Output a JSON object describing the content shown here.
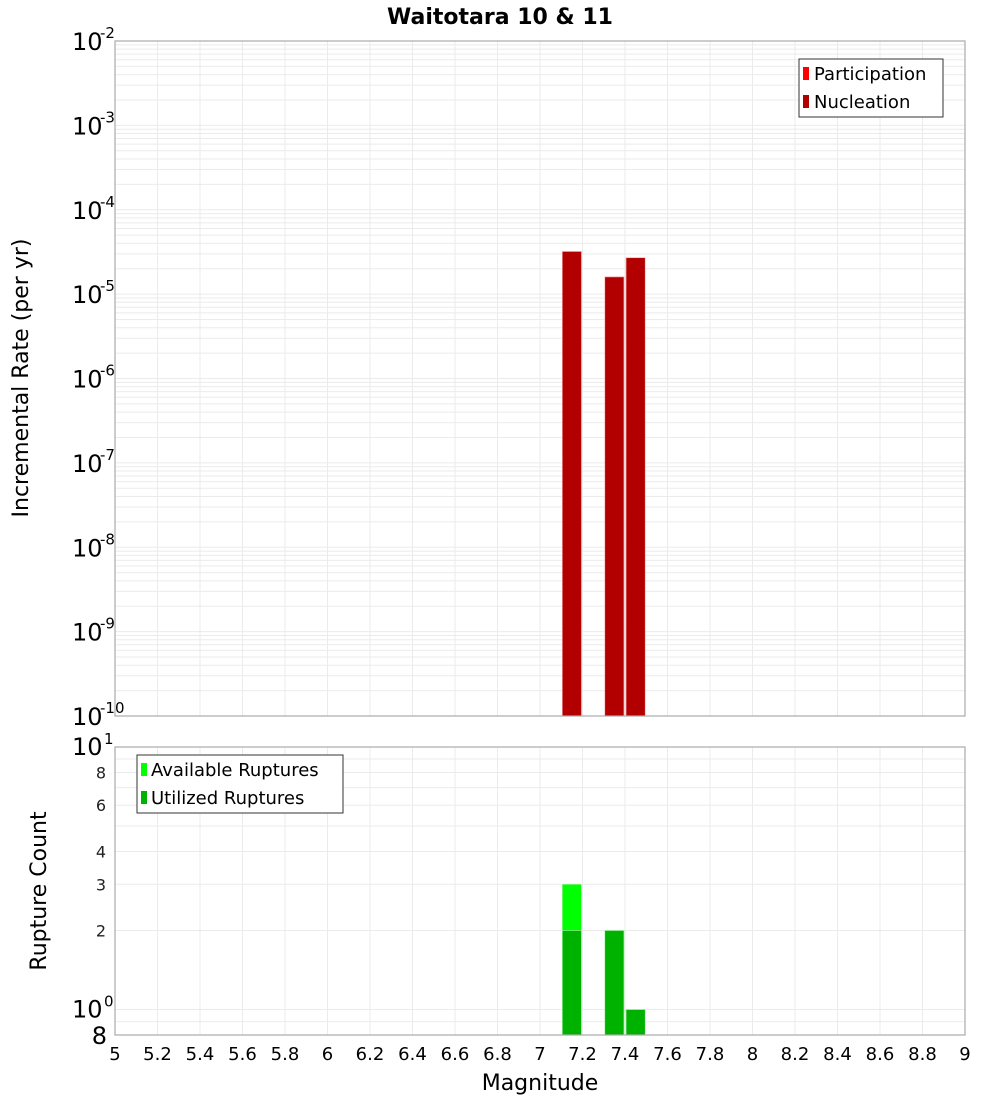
{
  "chart_data": [
    {
      "type": "bar",
      "panel": "top",
      "title": "Waitotara 10 & 11",
      "xlabel": "Magnitude",
      "ylabel": "Incremental Rate (per yr)",
      "yscale": "log",
      "ylim": [
        1e-10,
        0.01
      ],
      "xlim": [
        5,
        9
      ],
      "grid": true,
      "legend_position": "upper-right",
      "y_ticks": [
        "10^-10",
        "10^-9",
        "10^-8",
        "10^-7",
        "10^-6",
        "10^-5",
        "10^-4",
        "10^-3",
        "10^-2"
      ],
      "x": [
        7.15,
        7.35,
        7.45
      ],
      "bar_width": 0.09,
      "series": [
        {
          "name": "Participation",
          "color": "#ff0000",
          "values": [
            3.2e-05,
            1.6e-05,
            2.7e-05
          ]
        },
        {
          "name": "Nucleation",
          "color": "#b20000",
          "values": [
            3.2e-05,
            1.6e-05,
            2.7e-05
          ]
        }
      ]
    },
    {
      "type": "bar",
      "panel": "bottom",
      "xlabel": "Magnitude",
      "ylabel": "Rupture Count",
      "yscale": "log",
      "ylim": [
        0.8,
        10
      ],
      "xlim": [
        5,
        9
      ],
      "grid": true,
      "legend_position": "upper-left",
      "y_ticks": [
        "8",
        "10^0",
        "2",
        "3",
        "4",
        "6",
        "8",
        "10^1"
      ],
      "x_ticks": [
        "5",
        "5.2",
        "5.4",
        "5.6",
        "5.8",
        "6",
        "6.2",
        "6.4",
        "6.6",
        "6.8",
        "7",
        "7.2",
        "7.4",
        "7.6",
        "7.8",
        "8",
        "8.2",
        "8.4",
        "8.6",
        "8.8",
        "9"
      ],
      "x": [
        7.15,
        7.35,
        7.45
      ],
      "bar_width": 0.09,
      "series": [
        {
          "name": "Available Ruptures",
          "color": "#00ff00",
          "values": [
            3,
            2,
            1
          ]
        },
        {
          "name": "Utilized Ruptures",
          "color": "#00b200",
          "values": [
            2,
            2,
            1
          ]
        }
      ]
    }
  ]
}
